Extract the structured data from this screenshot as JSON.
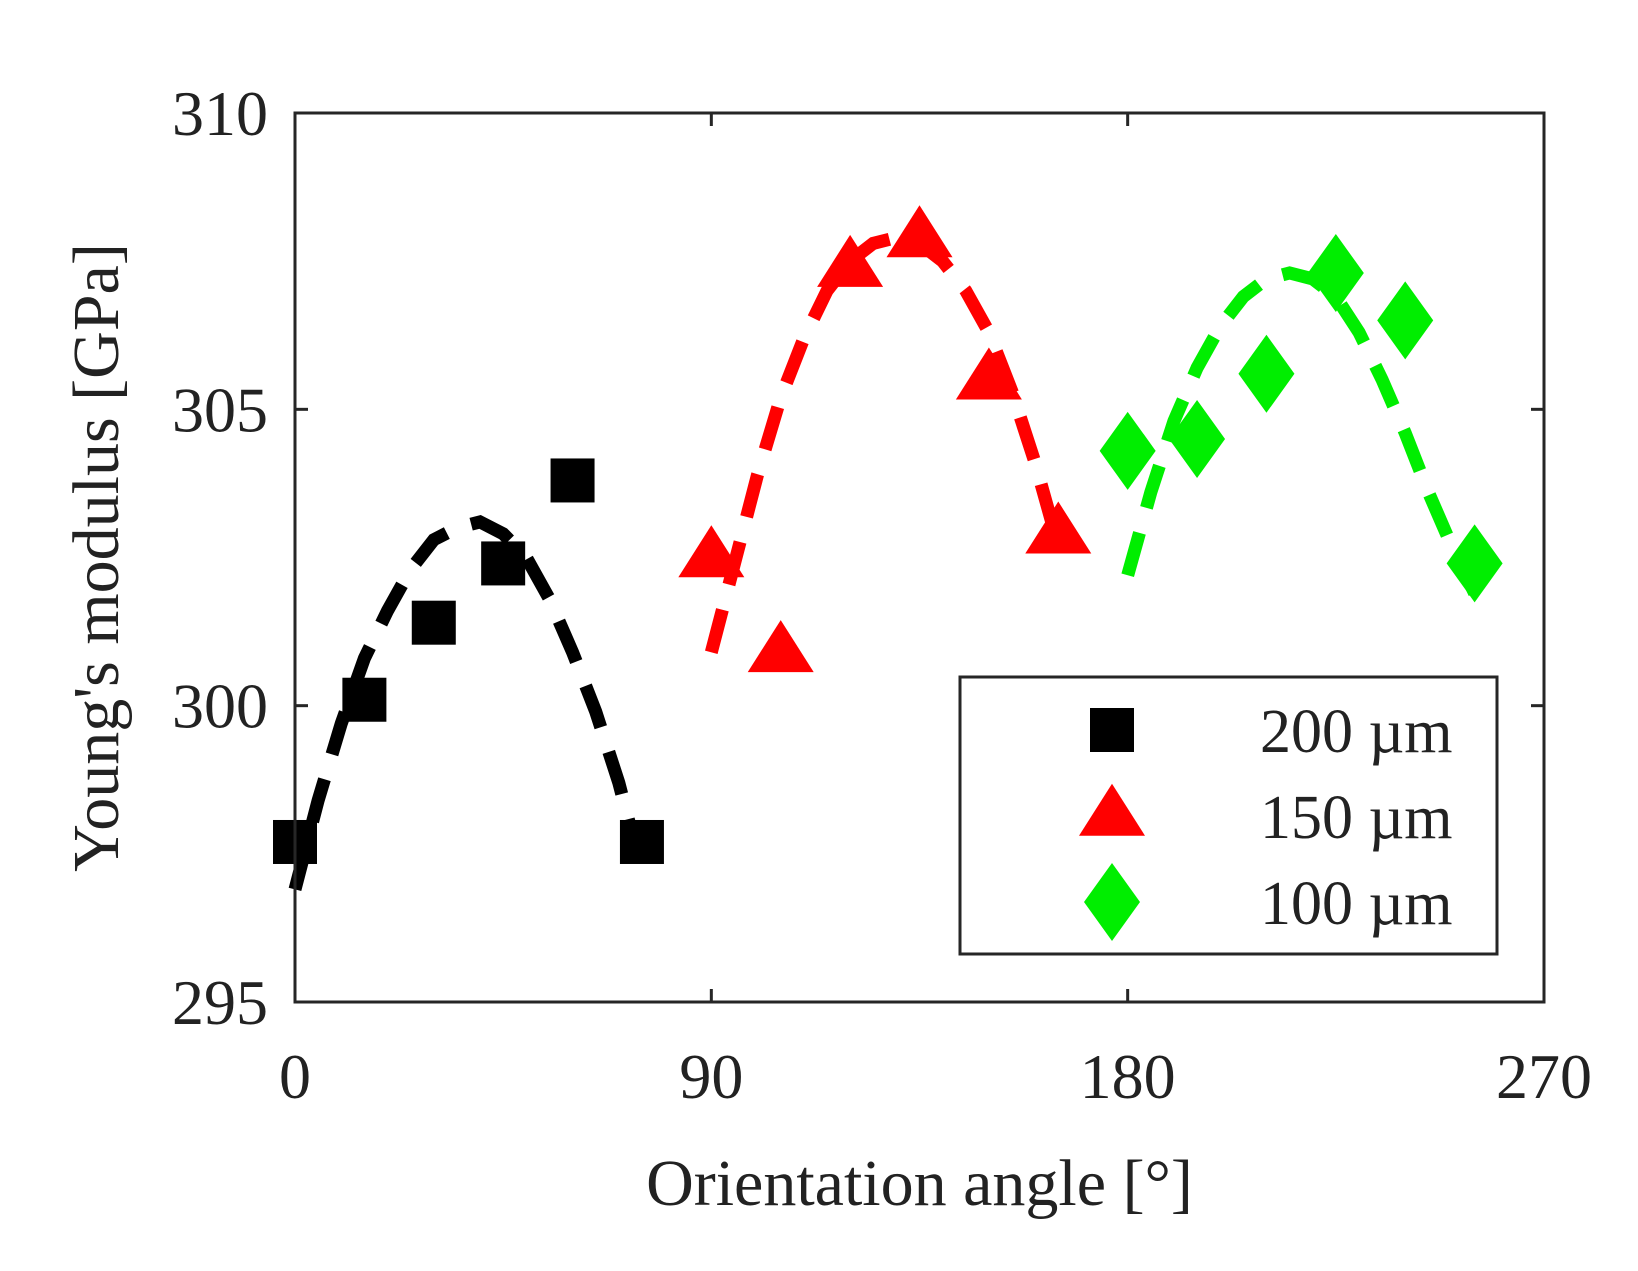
{
  "chart_data": {
    "type": "scatter",
    "title": "",
    "xlabel": "Orientation angle [°]",
    "ylabel": "Young's modulus [GPa]",
    "xlim": [
      0,
      270
    ],
    "ylim": [
      295,
      310
    ],
    "xticks": [
      0,
      90,
      180,
      270
    ],
    "yticks": [
      295,
      300,
      305,
      310
    ],
    "xtick_labels": [
      "0",
      "90",
      "180",
      "270"
    ],
    "ytick_labels": [
      "295",
      "300",
      "305",
      "310"
    ],
    "grid": false,
    "legend_position": "bottom-right",
    "series": [
      {
        "name": "200 µm",
        "color": "#000000",
        "marker": "square",
        "x": [
          0,
          15,
          30,
          45,
          60,
          75
        ],
        "y": [
          297.7,
          300.1,
          301.4,
          302.4,
          303.8,
          297.7
        ],
        "fit": {
          "style": "dashed",
          "x": [
            0,
            5,
            10,
            15,
            20,
            25,
            30,
            35,
            40,
            45,
            50,
            55,
            60,
            65,
            70,
            75
          ],
          "y": [
            296.9,
            298.4,
            299.7,
            300.8,
            301.6,
            302.3,
            302.8,
            303.0,
            303.1,
            302.9,
            302.5,
            301.8,
            300.9,
            299.9,
            298.7,
            297.2
          ]
        }
      },
      {
        "name": "150 µm",
        "color": "#ff0000",
        "marker": "triangle",
        "x": [
          90,
          105,
          120,
          135,
          150,
          165
        ],
        "y": [
          302.5,
          300.9,
          307.4,
          307.9,
          305.5,
          302.9
        ],
        "fit": {
          "style": "dashed",
          "x": [
            90,
            95,
            100,
            105,
            110,
            115,
            120,
            125,
            130,
            135,
            140,
            145,
            150,
            155,
            160,
            165
          ],
          "y": [
            300.9,
            302.4,
            303.9,
            305.2,
            306.2,
            307.0,
            307.5,
            307.8,
            307.9,
            307.8,
            307.5,
            307.0,
            306.3,
            305.3,
            304.1,
            302.7
          ]
        }
      },
      {
        "name": "100 µm",
        "color": "#00ee00",
        "marker": "diamond",
        "x": [
          180,
          195,
          210,
          225,
          240,
          255
        ],
        "y": [
          304.3,
          304.5,
          305.6,
          307.3,
          306.5,
          302.4
        ],
        "fit": {
          "style": "dashed",
          "x": [
            180,
            185,
            190,
            195,
            200,
            205,
            210,
            215,
            220,
            225,
            230,
            235,
            240,
            245,
            250,
            255
          ],
          "y": [
            302.2,
            303.6,
            304.8,
            305.7,
            306.4,
            306.9,
            307.2,
            307.3,
            307.2,
            306.9,
            306.3,
            305.5,
            304.6,
            303.6,
            302.7,
            301.9
          ]
        }
      }
    ]
  }
}
